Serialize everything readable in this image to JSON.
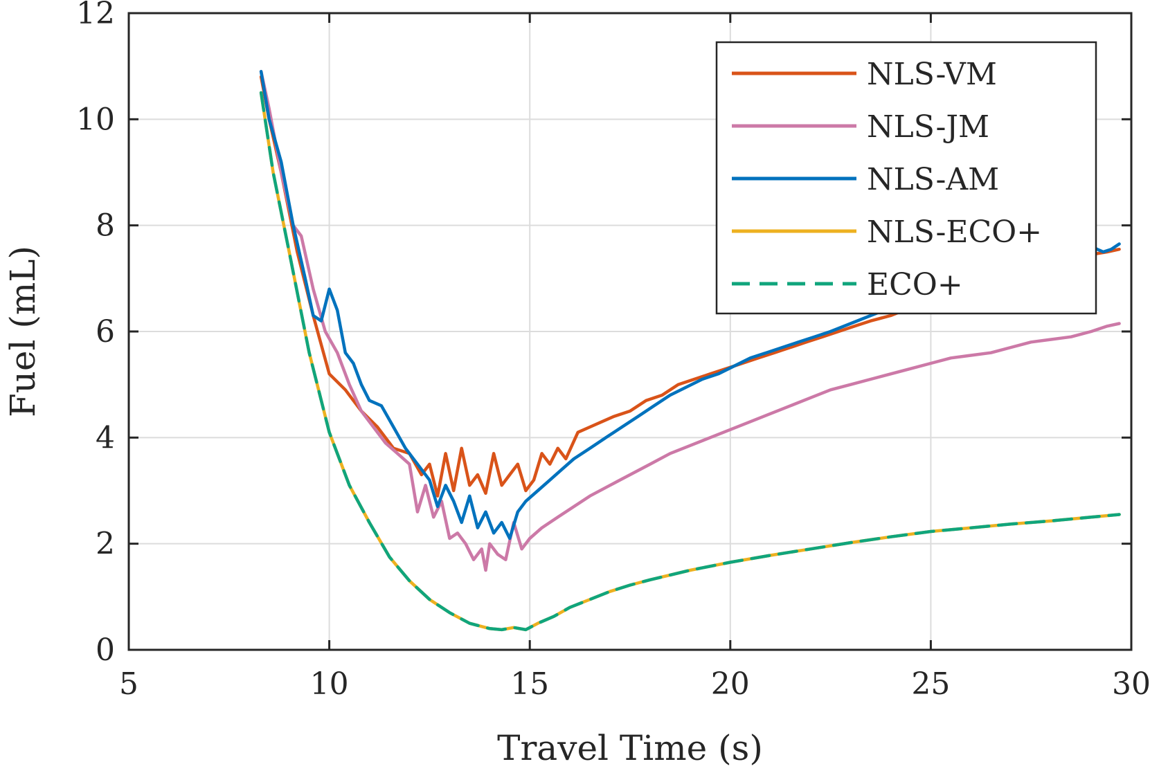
{
  "chart_data": {
    "type": "line",
    "title": "",
    "xlabel": "Travel Time (s)",
    "ylabel": "Fuel (mL)",
    "xlim": [
      5,
      30
    ],
    "ylim": [
      0,
      12
    ],
    "xticks": [
      5,
      10,
      15,
      20,
      25,
      30
    ],
    "yticks": [
      0,
      2,
      4,
      6,
      8,
      10,
      12
    ],
    "xtick_labels": [
      "5",
      "10",
      "15",
      "20",
      "25",
      "30"
    ],
    "ytick_labels": [
      "0",
      "2",
      "4",
      "6",
      "8",
      "10",
      "12"
    ],
    "grid": true,
    "legend_position": "top-right",
    "series": [
      {
        "name": "NLS-VM",
        "color": "#D95319",
        "dash": "solid",
        "x": [
          8.3,
          8.5,
          8.8,
          9.2,
          9.6,
          10.0,
          10.4,
          10.8,
          11.2,
          11.6,
          12.0,
          12.3,
          12.5,
          12.7,
          12.9,
          13.1,
          13.3,
          13.5,
          13.7,
          13.9,
          14.1,
          14.3,
          14.5,
          14.7,
          14.9,
          15.1,
          15.3,
          15.5,
          15.7,
          15.9,
          16.2,
          16.5,
          16.8,
          17.1,
          17.5,
          17.9,
          18.3,
          18.7,
          19.1,
          19.5,
          19.9,
          20.3,
          20.7,
          21.1,
          21.5,
          21.9,
          22.3,
          22.7,
          23.1,
          23.5,
          24.0,
          24.5,
          25.0,
          25.5,
          26.0,
          26.5,
          27.0,
          27.5,
          28.0,
          28.5,
          29.0,
          29.4,
          29.7
        ],
        "y": [
          10.8,
          10.0,
          9.0,
          7.5,
          6.3,
          5.2,
          4.9,
          4.5,
          4.2,
          3.8,
          3.7,
          3.3,
          3.5,
          2.9,
          3.7,
          3.0,
          3.8,
          3.1,
          3.3,
          2.95,
          3.7,
          3.1,
          3.3,
          3.5,
          3.0,
          3.2,
          3.7,
          3.5,
          3.8,
          3.6,
          4.1,
          4.2,
          4.3,
          4.4,
          4.5,
          4.7,
          4.8,
          5.0,
          5.1,
          5.2,
          5.3,
          5.4,
          5.5,
          5.6,
          5.7,
          5.8,
          5.9,
          6.0,
          6.1,
          6.2,
          6.3,
          6.45,
          6.6,
          6.75,
          6.9,
          7.0,
          7.1,
          7.2,
          7.3,
          7.4,
          7.45,
          7.5,
          7.55
        ]
      },
      {
        "name": "NLS-JM",
        "color": "#CC79A7",
        "dash": "solid",
        "x": [
          8.3,
          8.5,
          8.8,
          9.1,
          9.3,
          9.6,
          9.9,
          10.2,
          10.5,
          10.8,
          11.1,
          11.4,
          11.7,
          12.0,
          12.2,
          12.4,
          12.6,
          12.8,
          13.0,
          13.2,
          13.4,
          13.6,
          13.8,
          13.9,
          14.0,
          14.2,
          14.4,
          14.6,
          14.8,
          15.0,
          15.3,
          15.7,
          16.1,
          16.5,
          17.0,
          17.5,
          18.0,
          18.5,
          19.0,
          19.5,
          20.0,
          20.5,
          21.0,
          21.5,
          22.0,
          22.5,
          23.0,
          23.5,
          24.0,
          24.5,
          25.0,
          25.5,
          26.0,
          26.5,
          27.0,
          27.5,
          28.0,
          28.5,
          29.0,
          29.4,
          29.7
        ],
        "y": [
          10.9,
          10.2,
          9.0,
          8.0,
          7.8,
          6.8,
          6.0,
          5.6,
          5.0,
          4.5,
          4.2,
          3.9,
          3.7,
          3.5,
          2.6,
          3.1,
          2.5,
          2.8,
          2.1,
          2.2,
          2.0,
          1.7,
          1.9,
          1.5,
          2.0,
          1.8,
          1.7,
          2.4,
          1.9,
          2.1,
          2.3,
          2.5,
          2.7,
          2.9,
          3.1,
          3.3,
          3.5,
          3.7,
          3.85,
          4.0,
          4.15,
          4.3,
          4.45,
          4.6,
          4.75,
          4.9,
          5.0,
          5.1,
          5.2,
          5.3,
          5.4,
          5.5,
          5.55,
          5.6,
          5.7,
          5.8,
          5.85,
          5.9,
          6.0,
          6.1,
          6.15
        ]
      },
      {
        "name": "NLS-AM",
        "color": "#0072BD",
        "dash": "solid",
        "x": [
          8.3,
          8.5,
          8.8,
          9.1,
          9.4,
          9.6,
          9.8,
          10.0,
          10.2,
          10.4,
          10.6,
          10.8,
          11.0,
          11.3,
          11.6,
          11.9,
          12.2,
          12.5,
          12.7,
          12.9,
          13.1,
          13.3,
          13.5,
          13.7,
          13.9,
          14.1,
          14.3,
          14.5,
          14.7,
          14.9,
          15.2,
          15.5,
          15.8,
          16.1,
          16.5,
          16.9,
          17.3,
          17.7,
          18.1,
          18.5,
          18.9,
          19.3,
          19.7,
          20.1,
          20.5,
          20.9,
          21.3,
          21.7,
          22.1,
          22.5,
          23.0,
          23.5,
          24.0,
          24.5,
          25.0,
          25.5,
          26.0,
          26.5,
          27.0,
          27.5,
          28.0,
          28.5,
          29.0,
          29.3,
          29.5,
          29.7
        ],
        "y": [
          10.9,
          10.0,
          9.2,
          8.0,
          7.0,
          6.3,
          6.2,
          6.8,
          6.4,
          5.6,
          5.4,
          5.0,
          4.7,
          4.6,
          4.2,
          3.8,
          3.5,
          3.2,
          2.7,
          3.1,
          2.8,
          2.4,
          2.9,
          2.3,
          2.6,
          2.2,
          2.4,
          2.1,
          2.6,
          2.8,
          3.0,
          3.2,
          3.4,
          3.6,
          3.8,
          4.0,
          4.2,
          4.4,
          4.6,
          4.8,
          4.95,
          5.1,
          5.2,
          5.35,
          5.5,
          5.6,
          5.7,
          5.8,
          5.9,
          6.0,
          6.15,
          6.3,
          6.45,
          6.6,
          6.75,
          6.9,
          7.0,
          7.1,
          7.2,
          7.3,
          7.4,
          7.5,
          7.6,
          7.5,
          7.55,
          7.65
        ]
      },
      {
        "name": "NLS-ECO+",
        "color": "#EDB120",
        "dash": "solid",
        "x": [
          8.3,
          8.6,
          9.0,
          9.5,
          10.0,
          10.5,
          11.0,
          11.5,
          12.0,
          12.5,
          13.0,
          13.5,
          14.0,
          14.3,
          14.6,
          14.9,
          15.2,
          15.6,
          16.0,
          16.5,
          17.0,
          17.5,
          18.0,
          19.0,
          20.0,
          21.0,
          22.0,
          23.0,
          24.0,
          25.0,
          26.0,
          27.0,
          28.0,
          29.0,
          29.7
        ],
        "y": [
          10.5,
          9.0,
          7.5,
          5.6,
          4.1,
          3.1,
          2.4,
          1.75,
          1.3,
          0.95,
          0.7,
          0.5,
          0.4,
          0.38,
          0.42,
          0.38,
          0.5,
          0.63,
          0.8,
          0.95,
          1.1,
          1.22,
          1.32,
          1.5,
          1.65,
          1.78,
          1.9,
          2.02,
          2.13,
          2.23,
          2.3,
          2.37,
          2.43,
          2.5,
          2.55
        ]
      },
      {
        "name": "ECO+",
        "color": "#10A57C",
        "dash": "dashed",
        "x": [
          8.3,
          8.6,
          9.0,
          9.5,
          10.0,
          10.5,
          11.0,
          11.5,
          12.0,
          12.5,
          13.0,
          13.5,
          14.0,
          14.3,
          14.6,
          14.9,
          15.2,
          15.6,
          16.0,
          16.5,
          17.0,
          17.5,
          18.0,
          19.0,
          20.0,
          21.0,
          22.0,
          23.0,
          24.0,
          25.0,
          26.0,
          27.0,
          28.0,
          29.0,
          29.7
        ],
        "y": [
          10.5,
          9.0,
          7.5,
          5.6,
          4.1,
          3.1,
          2.4,
          1.75,
          1.3,
          0.95,
          0.7,
          0.5,
          0.4,
          0.38,
          0.42,
          0.38,
          0.5,
          0.63,
          0.8,
          0.95,
          1.1,
          1.22,
          1.32,
          1.5,
          1.65,
          1.78,
          1.9,
          2.02,
          2.13,
          2.23,
          2.3,
          2.37,
          2.43,
          2.5,
          2.55
        ]
      }
    ]
  }
}
